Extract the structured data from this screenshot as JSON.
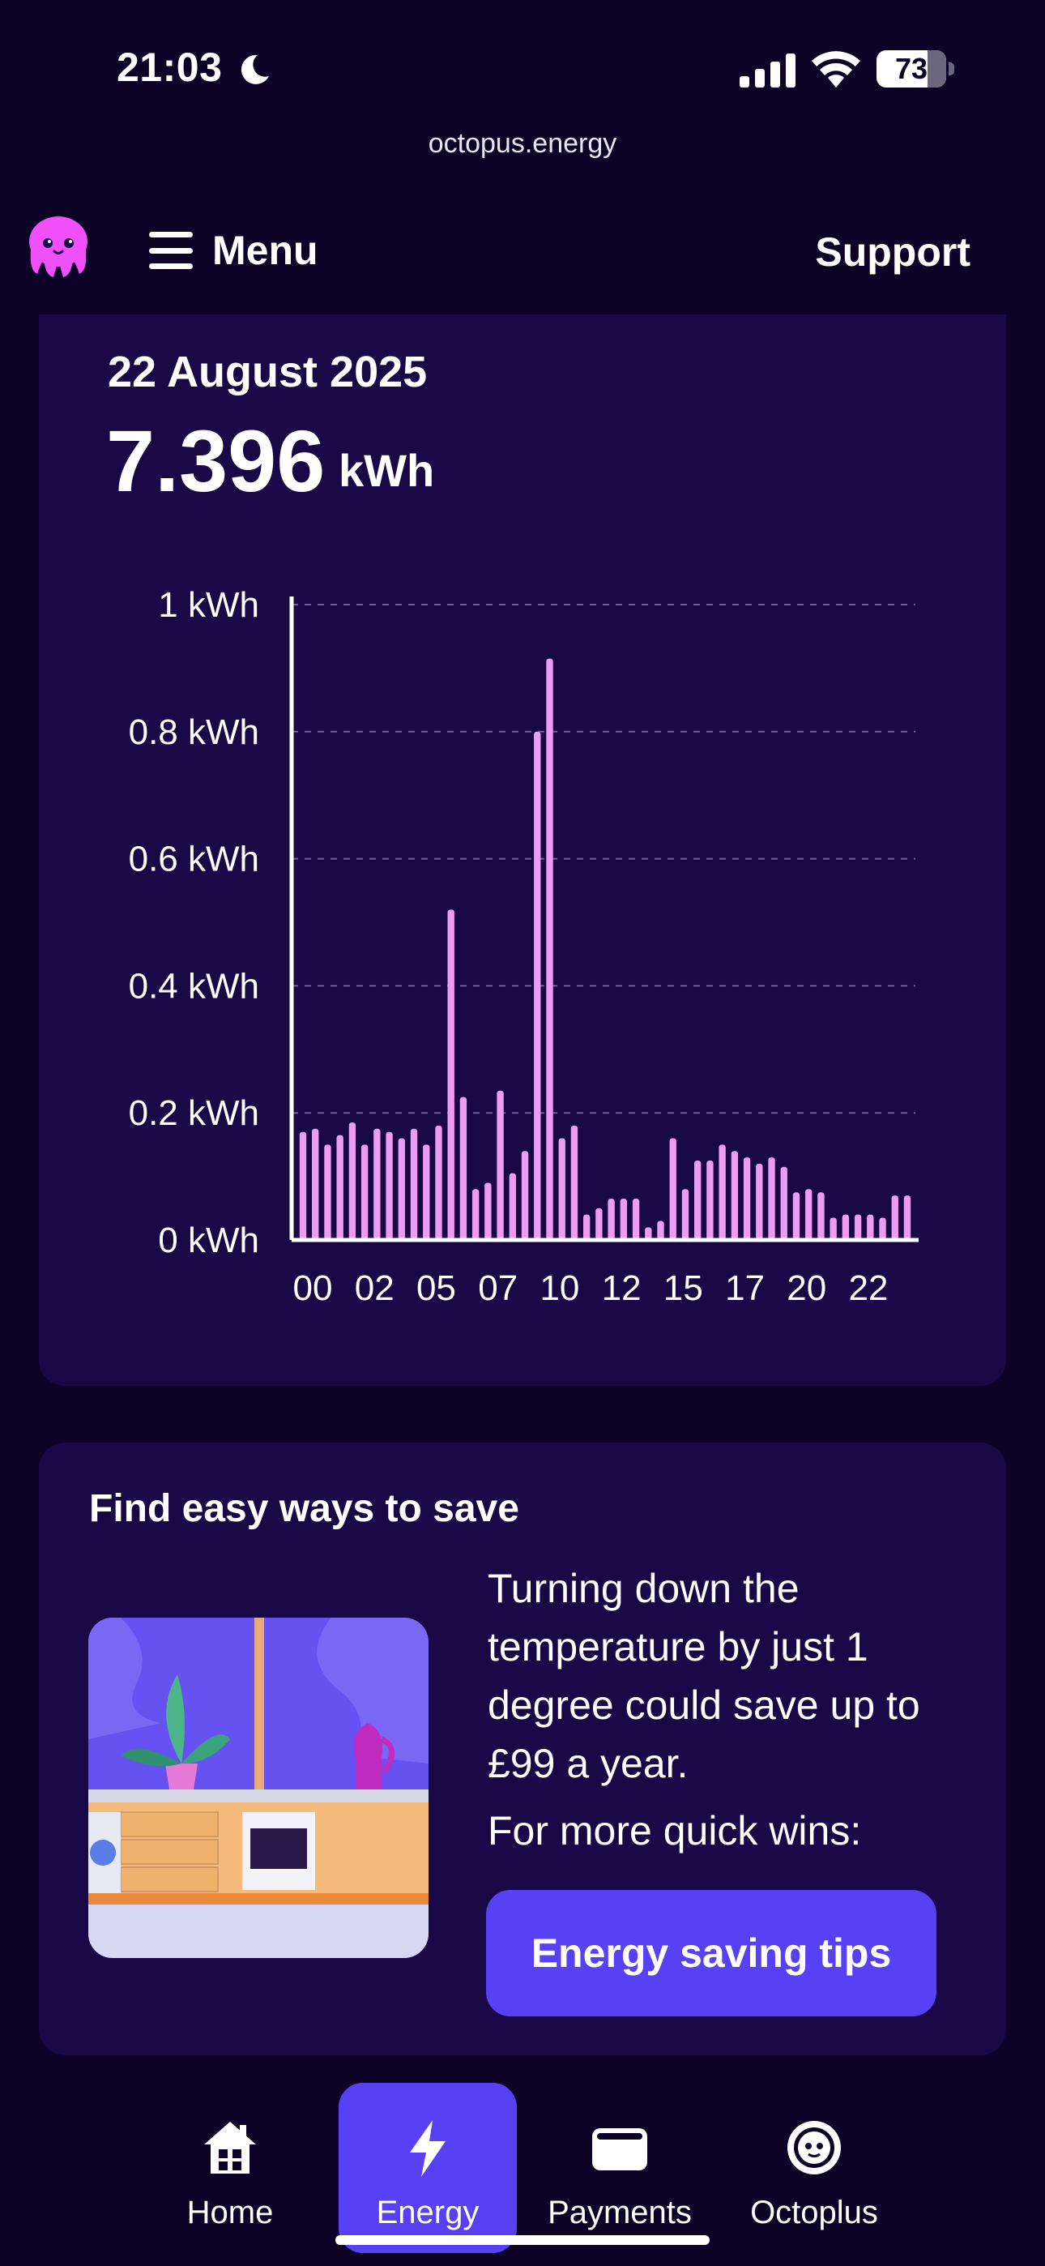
{
  "status_bar": {
    "time": "21:03",
    "battery": "73",
    "battery_level": 0.73
  },
  "browser": {
    "url": "octopus.energy"
  },
  "header": {
    "menu_label": "Menu",
    "support_label": "Support",
    "logo_icon": "octopus-logo"
  },
  "usage": {
    "date": "22 August 2025",
    "total": "7.396",
    "unit": "kWh"
  },
  "chart_data": {
    "type": "bar",
    "ylabel": "",
    "xlabel": "",
    "ylim": [
      0,
      1
    ],
    "grid": true,
    "y_ticks": [
      "1 kWh",
      "0.8 kWh",
      "0.6 kWh",
      "0.4 kWh",
      "0.2 kWh",
      "0 kWh"
    ],
    "x_ticks": [
      "00",
      "02",
      "05",
      "07",
      "10",
      "12",
      "15",
      "17",
      "20",
      "22"
    ],
    "bar_color": "#ec9cf2",
    "values": [
      0.17,
      0.175,
      0.15,
      0.165,
      0.185,
      0.15,
      0.175,
      0.17,
      0.16,
      0.175,
      0.15,
      0.18,
      0.52,
      0.225,
      0.08,
      0.09,
      0.235,
      0.105,
      0.14,
      0.8,
      0.915,
      0.16,
      0.18,
      0.04,
      0.05,
      0.065,
      0.065,
      0.065,
      0.02,
      0.03,
      0.16,
      0.08,
      0.125,
      0.125,
      0.15,
      0.14,
      0.13,
      0.12,
      0.13,
      0.115,
      0.075,
      0.08,
      0.075,
      0.035,
      0.04,
      0.04,
      0.04,
      0.035,
      0.07,
      0.07
    ]
  },
  "savings": {
    "title": "Find easy ways to save",
    "tip": "Turning down the temperature by just 1 degree could save up to £99 a year.",
    "more": "For more quick wins:",
    "button_label": "Energy saving tips"
  },
  "tabs": [
    {
      "label": "Home",
      "icon": "home-icon",
      "active": false
    },
    {
      "label": "Energy",
      "icon": "lightning-icon",
      "active": true
    },
    {
      "label": "Payments",
      "icon": "wallet-icon",
      "active": false
    },
    {
      "label": "Octoplus",
      "icon": "octoplus-coin-icon",
      "active": false
    }
  ],
  "colors": {
    "background": "#0c0326",
    "card": "#180846",
    "accent": "#5840f5",
    "bar": "#ec9cf2",
    "logo": "#f050f8"
  }
}
